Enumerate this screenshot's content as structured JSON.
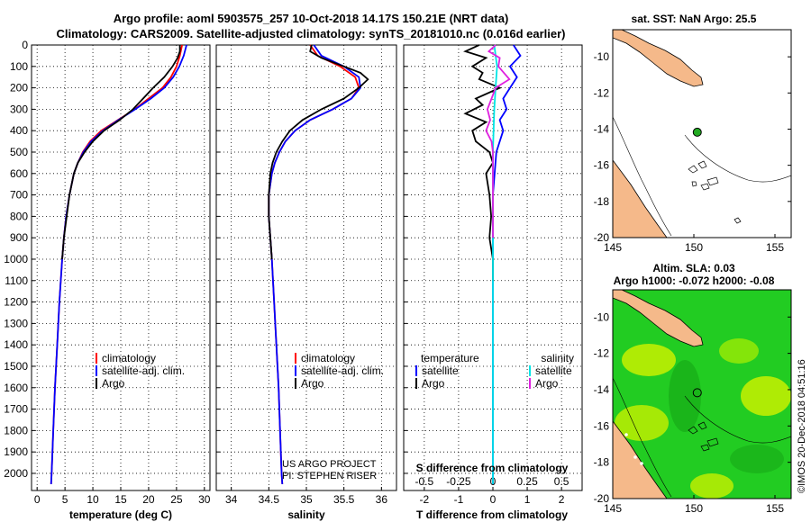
{
  "title": {
    "line1": "Argo profile: aoml 5903575_257 10-Oct-2018 14.17S 150.21E (NRT data)",
    "line2": "Climatology: CARS2009. Satellite-adjusted climatology: synTS_20181010.nc (0.016d earlier)"
  },
  "colors": {
    "climatology": "#ff0000",
    "satellite": "#0000ff",
    "argo": "#000000",
    "sal_sat": "#00e5e5",
    "sal_argo": "#e020e0",
    "land": "#f5b98a",
    "coast": "#000000",
    "sla_green": "#22cc22",
    "sla_yellow": "#c8f000"
  },
  "chart_data": [
    {
      "type": "line",
      "id": "temperature",
      "xlabel": "temperature (deg C)",
      "xlim": [
        -1,
        31
      ],
      "xticks": [
        0,
        5,
        10,
        15,
        20,
        25,
        30
      ],
      "xtick_labels": [
        "0",
        "5",
        "10",
        "15",
        "20",
        "25",
        "30"
      ],
      "ylim": [
        2080,
        0
      ],
      "yticks": [
        0,
        100,
        200,
        300,
        400,
        500,
        600,
        700,
        800,
        900,
        1000,
        1100,
        1200,
        1300,
        1400,
        1500,
        1600,
        1700,
        1800,
        1900,
        2000
      ],
      "ytick_labels": [
        "0",
        "100",
        "200",
        "300",
        "400",
        "500",
        "600",
        "700",
        "800",
        "900",
        "1000",
        "1100",
        "1200",
        "1300",
        "1400",
        "1500",
        "1600",
        "1700",
        "1800",
        "1900",
        "2000"
      ],
      "legend": [
        "climatology",
        "satellite-adj. clim.",
        "Argo"
      ],
      "series": [
        {
          "name": "climatology",
          "color": "#ff0000",
          "depth": [
            0,
            50,
            100,
            150,
            200,
            250,
            300,
            350,
            400,
            450,
            500,
            550,
            600,
            700,
            800,
            900,
            1000,
            1200,
            1400,
            1600,
            1800,
            2000,
            2050
          ],
          "values": [
            26.0,
            25.6,
            25.0,
            24.0,
            22.5,
            20.0,
            17.5,
            14.5,
            11.5,
            9.5,
            8.2,
            7.3,
            6.6,
            5.8,
            5.2,
            4.8,
            4.5,
            4.0,
            3.6,
            3.2,
            2.9,
            2.6,
            2.5
          ]
        },
        {
          "name": "satellite-adj. clim.",
          "color": "#0000ff",
          "depth": [
            0,
            50,
            100,
            150,
            200,
            250,
            300,
            350,
            400,
            450,
            500,
            550,
            600,
            700,
            800,
            900,
            1000,
            1200,
            1400,
            1600,
            1800,
            2000,
            2050
          ],
          "values": [
            26.8,
            26.3,
            25.5,
            24.4,
            22.8,
            20.4,
            17.6,
            14.6,
            11.8,
            9.7,
            8.3,
            7.3,
            6.6,
            5.8,
            5.2,
            4.8,
            4.5,
            4.0,
            3.6,
            3.2,
            2.9,
            2.6,
            2.5
          ]
        },
        {
          "name": "Argo",
          "color": "#000000",
          "depth": [
            0,
            30,
            60,
            100,
            150,
            200,
            250,
            300,
            350,
            400,
            450,
            500,
            550,
            600,
            700,
            800,
            900,
            1000
          ],
          "values": [
            25.6,
            25.6,
            25.2,
            24.3,
            22.8,
            20.8,
            19.0,
            17.2,
            14.8,
            12.0,
            10.0,
            8.5,
            7.3,
            6.6,
            5.8,
            5.3,
            4.8,
            4.5
          ]
        }
      ]
    },
    {
      "type": "line",
      "id": "salinity",
      "xlabel": "salinity",
      "xlim": [
        33.8,
        36.2
      ],
      "xticks": [
        34,
        34.5,
        35,
        35.5,
        36
      ],
      "xtick_labels": [
        "34",
        "34.5",
        "35",
        "35.5",
        "36"
      ],
      "ylim": [
        2080,
        0
      ],
      "legend": [
        "climatology",
        "satellite-adj. clim.",
        "Argo"
      ],
      "annotation": [
        "US ARGO PROJECT",
        "PI: STEPHEN RISER"
      ],
      "series": [
        {
          "name": "climatology",
          "color": "#ff0000",
          "depth": [
            0,
            50,
            100,
            150,
            200,
            250,
            300,
            350,
            400,
            450,
            500,
            550,
            600,
            700,
            800,
            900,
            1000,
            1200,
            1400,
            1600,
            1800,
            2000,
            2050
          ],
          "values": [
            35.05,
            35.15,
            35.45,
            35.65,
            35.7,
            35.6,
            35.35,
            35.05,
            34.85,
            34.72,
            34.64,
            34.58,
            34.54,
            34.5,
            34.5,
            34.52,
            34.54,
            34.57,
            34.6,
            34.63,
            34.65,
            34.67,
            34.68
          ]
        },
        {
          "name": "satellite-adj. clim.",
          "color": "#0000ff",
          "depth": [
            0,
            50,
            100,
            150,
            200,
            250,
            300,
            350,
            400,
            450,
            500,
            550,
            600,
            700,
            800,
            900,
            1000,
            1200,
            1400,
            1600,
            1800,
            2000,
            2050
          ],
          "values": [
            35.1,
            35.2,
            35.5,
            35.7,
            35.72,
            35.6,
            35.35,
            35.05,
            34.85,
            34.72,
            34.64,
            34.58,
            34.54,
            34.5,
            34.5,
            34.52,
            34.54,
            34.57,
            34.6,
            34.63,
            34.65,
            34.67,
            34.68
          ]
        },
        {
          "name": "Argo",
          "color": "#000000",
          "depth": [
            0,
            30,
            60,
            100,
            130,
            160,
            200,
            250,
            300,
            350,
            400,
            450,
            500,
            550,
            600,
            700,
            800,
            900,
            1000
          ],
          "values": [
            35.07,
            35.05,
            35.2,
            35.5,
            35.72,
            35.82,
            35.7,
            35.5,
            35.2,
            34.95,
            34.78,
            34.68,
            34.6,
            34.55,
            34.52,
            34.5,
            34.5,
            34.52,
            34.54
          ]
        }
      ]
    },
    {
      "type": "line",
      "id": "differences",
      "xlabel": "T difference from climatology",
      "xlabel2": "S difference from climatology",
      "xlim": [
        -2.6,
        2.6
      ],
      "xticks": [
        -2,
        -1,
        0,
        1,
        2
      ],
      "xtick_labels": [
        "-2",
        "-1",
        "0",
        "1",
        "2"
      ],
      "xticks2": [
        -0.5,
        -0.25,
        0,
        0.25,
        0.5
      ],
      "xtick2_labels": [
        "-0.5",
        "-0.25",
        "0",
        "0.25",
        "0.5"
      ],
      "ylim": [
        2080,
        0
      ],
      "legend_left_title": "temperature",
      "legend_left": [
        "satellite",
        "Argo"
      ],
      "legend_right_title": "salinity",
      "legend_right": [
        "satellite",
        "Argo"
      ],
      "series": [
        {
          "name": "T satellite",
          "color": "#0000ff",
          "depth": [
            0,
            50,
            100,
            150,
            200,
            250,
            300,
            350,
            400,
            500,
            600,
            700,
            800,
            1000,
            1500,
            2050
          ],
          "values": [
            0.6,
            0.8,
            0.5,
            0.7,
            0.5,
            0.3,
            0.4,
            0.2,
            0.3,
            0.1,
            0.05,
            0,
            0,
            0,
            0,
            0
          ]
        },
        {
          "name": "T Argo",
          "color": "#000000",
          "depth": [
            0,
            30,
            60,
            100,
            130,
            160,
            200,
            250,
            280,
            320,
            360,
            400,
            450,
            500,
            550,
            600,
            700,
            800,
            900,
            1000,
            1100
          ],
          "values": [
            -0.4,
            -0.8,
            -0.2,
            -0.6,
            -0.3,
            -0.4,
            0.2,
            -0.5,
            -0.3,
            -0.8,
            -0.2,
            -0.6,
            -0.5,
            -0.1,
            0,
            -0.2,
            -0.1,
            -0.05,
            -0.1,
            0,
            0
          ]
        },
        {
          "name": "S satellite",
          "color": "#00e5e5",
          "depth": [
            0,
            50,
            100,
            200,
            300,
            500,
            2050
          ],
          "values": [
            0.01,
            0.02,
            0.03,
            0.02,
            0.01,
            0,
            0
          ]
        },
        {
          "name": "S Argo",
          "color": "#e020e0",
          "depth": [
            0,
            30,
            60,
            100,
            160,
            200,
            250,
            300,
            350,
            400,
            450,
            500,
            600,
            700,
            900
          ],
          "values": [
            0.02,
            -0.03,
            0.05,
            0.04,
            0.12,
            0.02,
            -0.01,
            -0.04,
            -0.02,
            -0.05,
            -0.01,
            0.0,
            0.0,
            0.0,
            0.0
          ]
        }
      ]
    },
    {
      "type": "map",
      "id": "sst_map",
      "title": "sat. SST: NaN Argo: 25.5",
      "xlim": [
        145,
        156
      ],
      "ylim": [
        -20,
        -8.5
      ],
      "xticks": [
        145,
        150,
        155
      ],
      "xtick_labels": [
        "145",
        "150",
        "155"
      ],
      "yticks": [
        -10,
        -12,
        -14,
        -16,
        -18,
        -20
      ],
      "ytick_labels": [
        "-10",
        "-12",
        "-14",
        "-16",
        "-18",
        "-20"
      ],
      "float_lon": 150.21,
      "float_lat": -14.17
    },
    {
      "type": "heatmap",
      "id": "sla_map",
      "title": "Altim. SLA: 0.03",
      "subtitle": "Argo h1000: -0.072 h2000: -0.08",
      "xlim": [
        145,
        156
      ],
      "ylim": [
        -20,
        -8.5
      ],
      "xticks": [
        145,
        150,
        155
      ],
      "xtick_labels": [
        "145",
        "150",
        "155"
      ],
      "yticks": [
        -10,
        -12,
        -14,
        -16,
        -18,
        -20
      ],
      "ytick_labels": [
        "-10",
        "-12",
        "-14",
        "-16",
        "-18",
        "-20"
      ],
      "float_lon": 150.21,
      "float_lat": -14.17
    }
  ],
  "credit": "©IMOS 20-Dec-2018 04:51:16"
}
